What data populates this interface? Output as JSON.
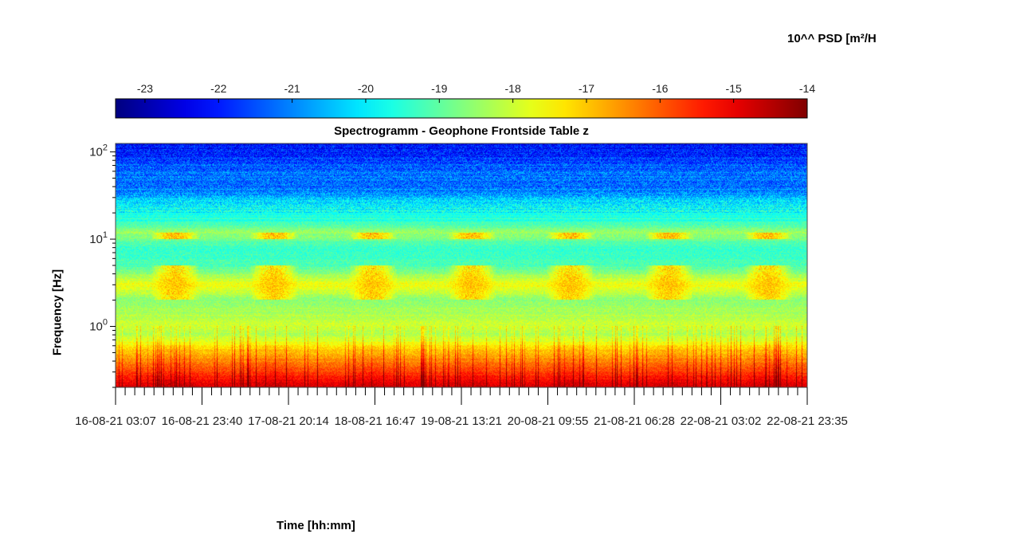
{
  "chart_data": {
    "type": "heatmap",
    "title": "Spectrogramm - Geophone Frontside Table z",
    "xlabel": "Time [hh:mm]",
    "ylabel": "Frequency [Hz]",
    "y_scale": "log",
    "ylim": [
      0.2,
      125
    ],
    "y_ticks": [
      {
        "value": 1,
        "base": "10",
        "exp": "0"
      },
      {
        "value": 10,
        "base": "10",
        "exp": "1"
      },
      {
        "value": 100,
        "base": "10",
        "exp": "2"
      }
    ],
    "x_ticks": [
      "16-08-21 03:07",
      "16-08-21 23:40",
      "17-08-21 20:14",
      "18-08-21 16:47",
      "19-08-21 13:21",
      "20-08-21 09:55",
      "21-08-21 06:28",
      "22-08-21 03:02",
      "22-08-21 23:35"
    ],
    "x_minor_per_major": 9,
    "colorbar": {
      "label": "10^^ PSD [m²/H",
      "ticks": [
        "-23",
        "-22",
        "-21",
        "-20",
        "-19",
        "-18",
        "-17",
        "-16",
        "-15",
        "-14"
      ],
      "range": [
        -23.4,
        -14
      ],
      "colormap": "jet"
    },
    "spectral_profile": [
      {
        "freq": 0.2,
        "log_psd": -14.8
      },
      {
        "freq": 0.3,
        "log_psd": -15.8
      },
      {
        "freq": 0.5,
        "log_psd": -16.9
      },
      {
        "freq": 0.8,
        "log_psd": -18.3
      },
      {
        "freq": 1.0,
        "log_psd": -18.0
      },
      {
        "freq": 2.0,
        "log_psd": -18.6
      },
      {
        "freq": 3.0,
        "log_psd": -17.6
      },
      {
        "freq": 5.0,
        "log_psd": -19.2
      },
      {
        "freq": 8.0,
        "log_psd": -19.4
      },
      {
        "freq": 12.0,
        "log_psd": -18.4
      },
      {
        "freq": 16.0,
        "log_psd": -19.5
      },
      {
        "freq": 25.0,
        "log_psd": -20.0
      },
      {
        "freq": 40.0,
        "log_psd": -21.2
      },
      {
        "freq": 60.0,
        "log_psd": -21.2
      },
      {
        "freq": 100.0,
        "log_psd": -22.0
      },
      {
        "freq": 125.0,
        "log_psd": -22.2
      }
    ],
    "daytime_activity_bands": [
      {
        "freq_range": [
          2,
          5
        ],
        "log_psd": -16.8
      },
      {
        "freq_range": [
          10,
          12
        ],
        "log_psd": -16.5
      }
    ]
  }
}
